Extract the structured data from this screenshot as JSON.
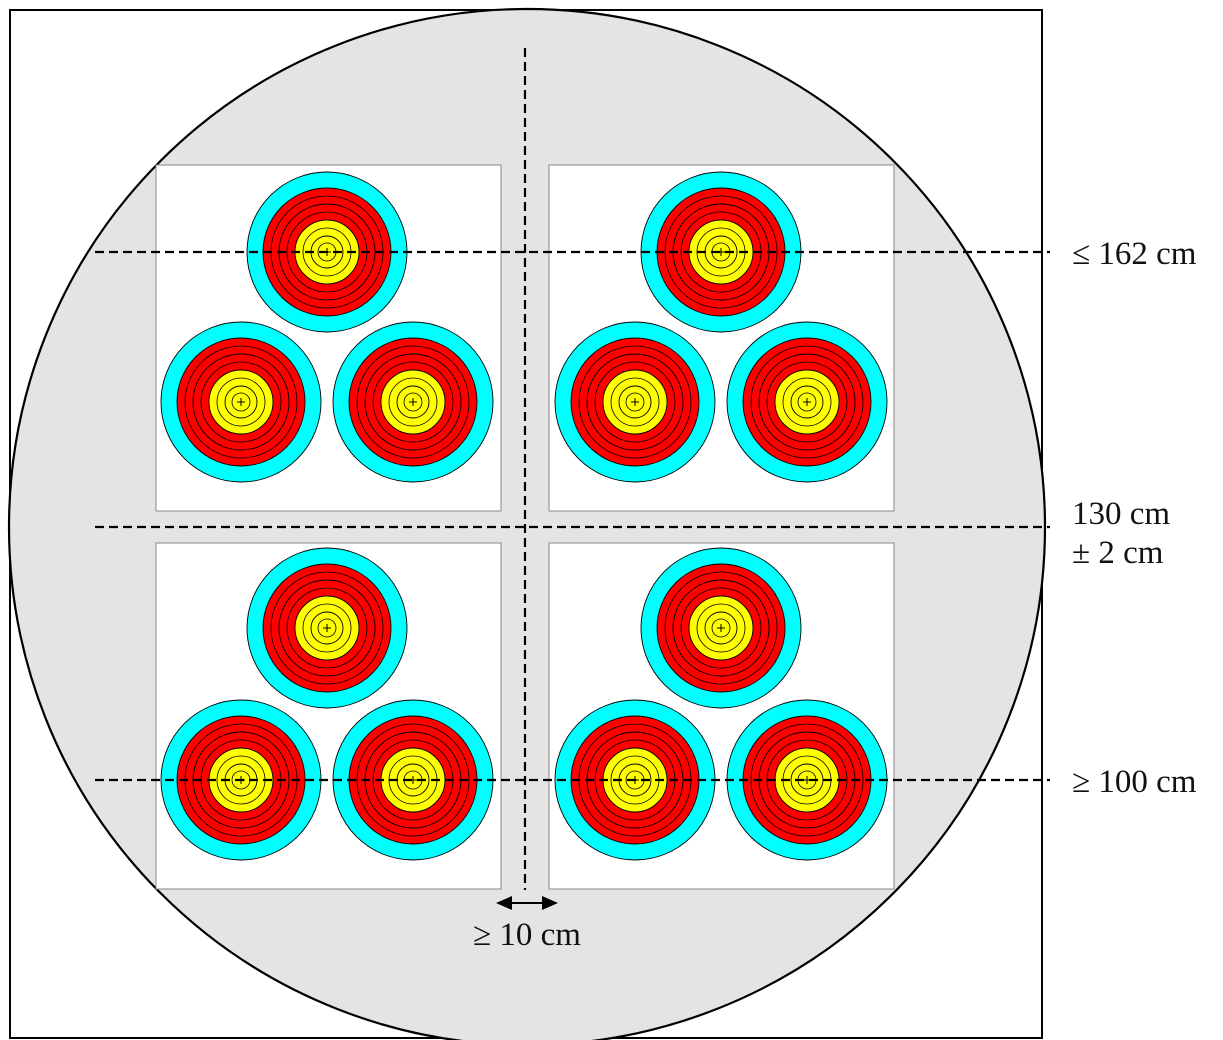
{
  "labels": {
    "top_height": "≤ 162 cm",
    "center_height_line1": "130 cm",
    "center_height_line2": "± 2 cm",
    "bottom_height": "≥ 100 cm",
    "gap": "≥ 10 cm"
  },
  "target_face": {
    "ring_colors": [
      "#00ffff",
      "#ff0000",
      "#ff0000",
      "#ffff00",
      "#ffff00"
    ],
    "ring_lines": [
      "black-line",
      "black-line",
      "black-line",
      "black-line",
      "black-line"
    ]
  },
  "backdrop": {
    "boss_color": "#e4e4e4",
    "sheet_color": "#ffffff",
    "line_color": "#000000"
  },
  "faces_per_sheet": 3,
  "sheet_count": 4
}
